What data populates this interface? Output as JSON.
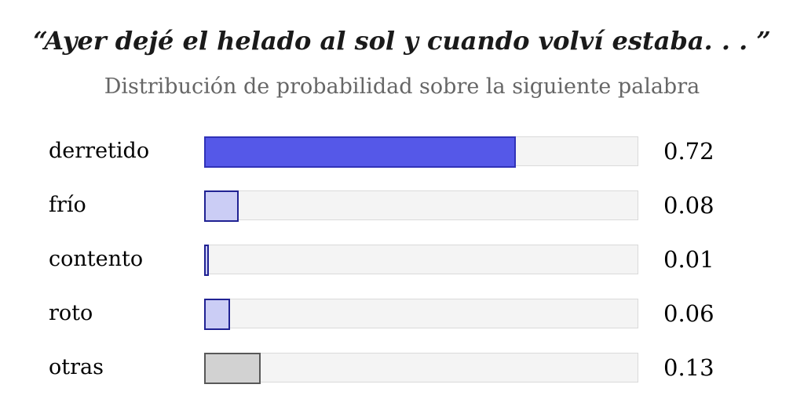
{
  "chart_data": {
    "type": "bar",
    "orientation": "horizontal",
    "title": "“Ayer dejé el helado al sol y cuando volví estaba. . . ”",
    "subtitle": "Distribución de probabilidad sobre la siguiente palabra",
    "categories": [
      "derretido",
      "frío",
      "contento",
      "roto",
      "otras"
    ],
    "values": [
      0.72,
      0.08,
      0.01,
      0.06,
      0.13
    ],
    "value_labels": [
      "0.72",
      "0.08",
      "0.01",
      "0.06",
      "0.13"
    ],
    "bar_styles": [
      "primary",
      "secondary",
      "secondary",
      "secondary",
      "other"
    ],
    "xlim": [
      0,
      1
    ],
    "grid": false,
    "legend_position": "none",
    "xlabel": "",
    "ylabel": "",
    "colors": {
      "primary_fill": "#5558e8",
      "primary_border": "#3032b8",
      "secondary_fill": "#cbcdf5",
      "secondary_border": "#202293",
      "other_fill": "#d2d2d2",
      "other_border": "#585858",
      "track_fill": "#f4f4f4",
      "track_border": "#dadada",
      "title_color": "#1a1a1a",
      "subtitle_color": "#666666",
      "text_color": "#000000",
      "background": "#ffffff"
    }
  }
}
